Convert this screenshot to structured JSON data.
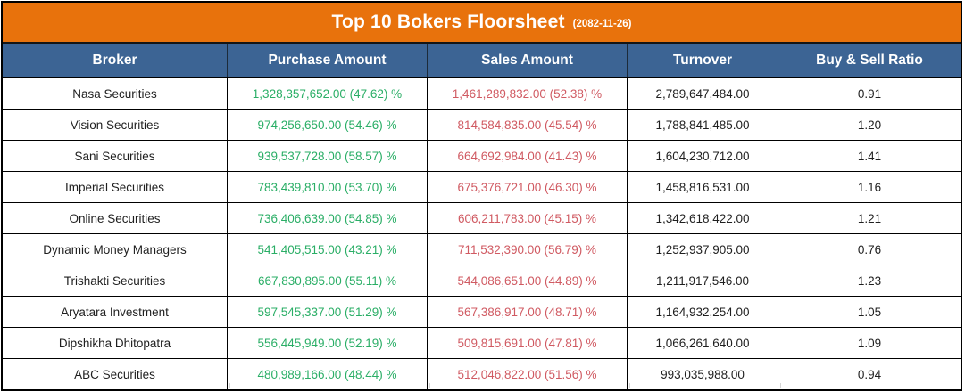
{
  "title": {
    "text": "Top 10 Bokers Floorsheet",
    "date_label": "(2082-11-26)"
  },
  "colors": {
    "title_bg": "#E8720C",
    "header_bg": "#3C6494",
    "purchase_text": "#2AAE66",
    "sales_text": "#D05A62",
    "header_text": "#FFFFFF",
    "body_text": "#1F1F1F",
    "border": "#000000"
  },
  "chart_data": {
    "type": "table",
    "title": "Top 10 Bokers Floorsheet",
    "date": "2082-11-26",
    "columns": [
      "Broker",
      "Purchase Amount",
      "Sales Amount",
      "Turnover",
      "Buy & Sell Ratio"
    ],
    "rows": [
      {
        "broker": "Nasa Securities",
        "purchase": "1,328,357,652.00 (47.62) %",
        "sales": "1,461,289,832.00 (52.38) %",
        "turnover": "2,789,647,484.00",
        "ratio": "0.91"
      },
      {
        "broker": "Vision Securities",
        "purchase": "974,256,650.00 (54.46) %",
        "sales": "814,584,835.00 (45.54) %",
        "turnover": "1,788,841,485.00",
        "ratio": "1.20"
      },
      {
        "broker": "Sani Securities",
        "purchase": "939,537,728.00 (58.57) %",
        "sales": "664,692,984.00 (41.43) %",
        "turnover": "1,604,230,712.00",
        "ratio": "1.41"
      },
      {
        "broker": "Imperial Securities",
        "purchase": "783,439,810.00 (53.70) %",
        "sales": "675,376,721.00 (46.30) %",
        "turnover": "1,458,816,531.00",
        "ratio": "1.16"
      },
      {
        "broker": "Online Securities",
        "purchase": "736,406,639.00 (54.85) %",
        "sales": "606,211,783.00 (45.15) %",
        "turnover": "1,342,618,422.00",
        "ratio": "1.21"
      },
      {
        "broker": "Dynamic Money Managers",
        "purchase": "541,405,515.00 (43.21) %",
        "sales": "711,532,390.00 (56.79) %",
        "turnover": "1,252,937,905.00",
        "ratio": "0.76"
      },
      {
        "broker": "Trishakti Securities",
        "purchase": "667,830,895.00 (55.11) %",
        "sales": "544,086,651.00 (44.89) %",
        "turnover": "1,211,917,546.00",
        "ratio": "1.23"
      },
      {
        "broker": "Aryatara Investment",
        "purchase": "597,545,337.00 (51.29) %",
        "sales": "567,386,917.00 (48.71) %",
        "turnover": "1,164,932,254.00",
        "ratio": "1.05"
      },
      {
        "broker": "Dipshikha Dhitopatra",
        "purchase": "556,445,949.00 (52.19) %",
        "sales": "509,815,691.00 (47.81) %",
        "turnover": "1,066,261,640.00",
        "ratio": "1.09"
      },
      {
        "broker": "ABC Securities",
        "purchase": "480,989,166.00 (48.44) %",
        "sales": "512,046,822.00 (51.56) %",
        "turnover": "993,035,988.00",
        "ratio": "0.94"
      }
    ]
  }
}
